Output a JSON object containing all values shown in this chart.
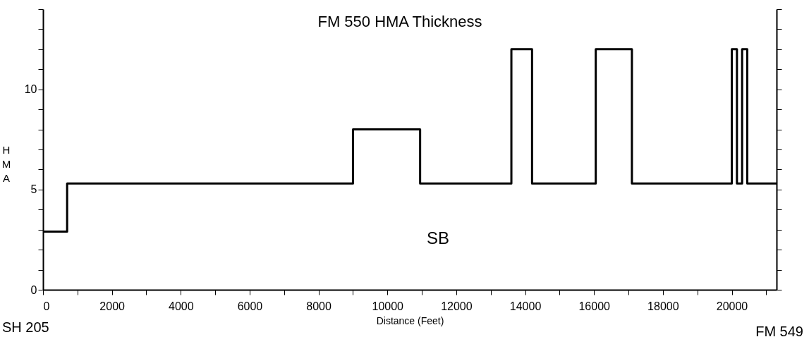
{
  "chart_data": {
    "type": "step",
    "title": "FM 550 HMA Thickness",
    "xlabel": "Distance (Feet)",
    "ylabel": "HMA",
    "x": [
      0,
      700,
      9000,
      10950,
      13600,
      14200,
      16050,
      17100,
      20000,
      20150,
      20300,
      20450,
      21300
    ],
    "values": [
      2.9,
      5.3,
      8,
      5.3,
      12,
      5.3,
      12,
      5.3,
      12,
      5.3,
      12,
      5.3,
      5.3
    ],
    "color": "#000000",
    "line_style": "solid",
    "marker": "none",
    "grid": false,
    "legend": false,
    "xlim": [
      0,
      21300
    ],
    "ylim": [
      0,
      14
    ],
    "xticks": [
      0,
      {
        "value": 1000,
        "label": null
      },
      2000,
      {
        "value": 3000,
        "label": null
      },
      4000,
      {
        "value": 5000,
        "label": null
      },
      6000,
      {
        "value": 7000,
        "label": null
      },
      8000,
      {
        "value": 9000,
        "label": null
      },
      10000,
      {
        "value": 11000,
        "label": null
      },
      12000,
      {
        "value": 13000,
        "label": null
      },
      14000,
      {
        "value": 15000,
        "label": null
      },
      16000,
      {
        "value": 17000,
        "label": null
      },
      18000,
      {
        "value": 19000,
        "label": null
      },
      20000,
      {
        "value": 21000,
        "label": null
      }
    ],
    "yticks": [
      0,
      {
        "value": 1,
        "label": null
      },
      {
        "value": 2,
        "label": null
      },
      {
        "value": 3,
        "label": null
      },
      {
        "value": 4,
        "label": null
      },
      5,
      {
        "value": 6,
        "label": null
      },
      {
        "value": 7,
        "label": null
      },
      {
        "value": 8,
        "label": null
      },
      {
        "value": 9,
        "label": null
      },
      10,
      {
        "value": 11,
        "label": null
      },
      {
        "value": 12,
        "label": null
      },
      {
        "value": 13,
        "label": null
      },
      {
        "value": 14,
        "label": null
      }
    ],
    "annotations": [
      "SB",
      "SH 205",
      "FM 549"
    ]
  }
}
